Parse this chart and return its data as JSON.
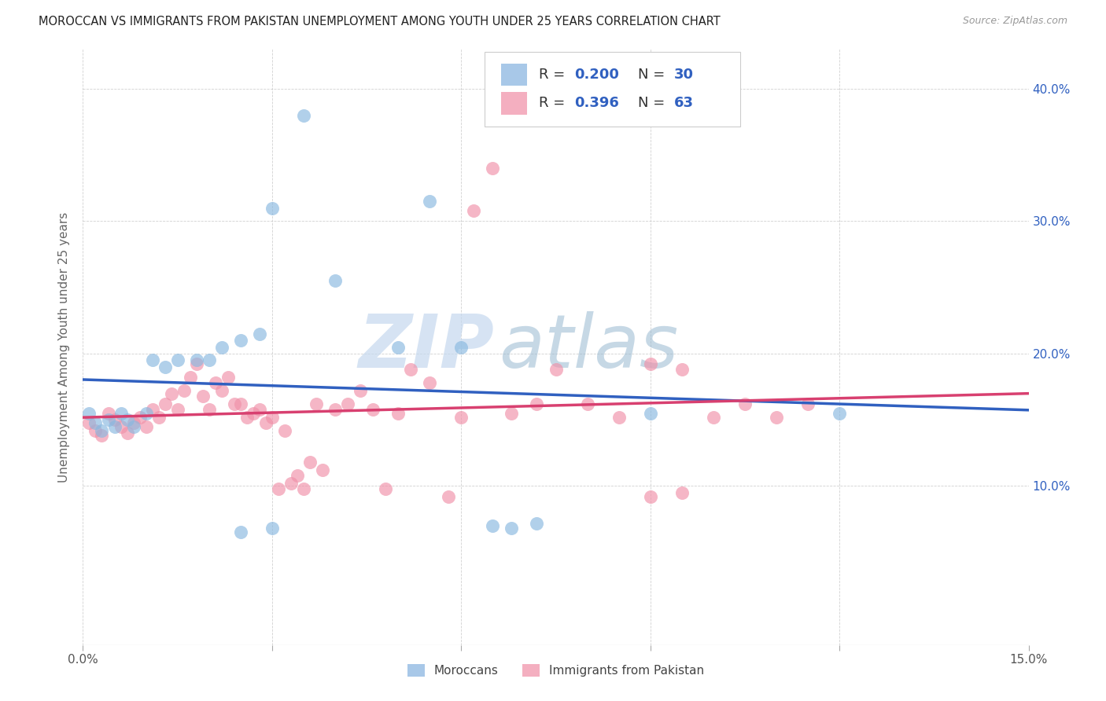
{
  "title": "MOROCCAN VS IMMIGRANTS FROM PAKISTAN UNEMPLOYMENT AMONG YOUTH UNDER 25 YEARS CORRELATION CHART",
  "source": "Source: ZipAtlas.com",
  "ylabel": "Unemployment Among Youth under 25 years",
  "xlim": [
    0.0,
    0.15
  ],
  "ylim": [
    -0.02,
    0.43
  ],
  "xticks": [
    0.0,
    0.03,
    0.06,
    0.09,
    0.12,
    0.15
  ],
  "yticks": [
    0.1,
    0.2,
    0.3,
    0.4
  ],
  "ytick_labels_right": [
    "10.0%",
    "20.0%",
    "30.0%",
    "40.0%"
  ],
  "xtick_labels": [
    "0.0%",
    "",
    "",
    "",
    "",
    "15.0%"
  ],
  "legend_bottom": [
    "Moroccans",
    "Immigrants from Pakistan"
  ],
  "legend_bottom_colors": [
    "#a8c8e8",
    "#f4afc0"
  ],
  "moroccan_color": "#88b8e0",
  "pakistan_color": "#f090a8",
  "moroccan_line_color": "#3060c0",
  "pakistan_line_color": "#d84070",
  "watermark_zip": "ZIP",
  "watermark_atlas": "atlas",
  "background_color": "#ffffff",
  "moroccan_x": [
    0.001,
    0.002,
    0.003,
    0.004,
    0.005,
    0.006,
    0.007,
    0.008,
    0.01,
    0.011,
    0.013,
    0.015,
    0.018,
    0.02,
    0.022,
    0.025,
    0.028,
    0.03,
    0.035,
    0.04,
    0.05,
    0.055,
    0.06,
    0.065,
    0.068,
    0.072,
    0.09,
    0.12,
    0.025,
    0.03
  ],
  "moroccan_y": [
    0.155,
    0.148,
    0.142,
    0.15,
    0.145,
    0.155,
    0.15,
    0.145,
    0.155,
    0.195,
    0.19,
    0.195,
    0.195,
    0.195,
    0.205,
    0.21,
    0.215,
    0.31,
    0.38,
    0.255,
    0.205,
    0.315,
    0.205,
    0.07,
    0.068,
    0.072,
    0.155,
    0.155,
    0.065,
    0.068
  ],
  "pakistan_x": [
    0.001,
    0.002,
    0.003,
    0.004,
    0.005,
    0.006,
    0.007,
    0.008,
    0.009,
    0.01,
    0.011,
    0.012,
    0.013,
    0.014,
    0.015,
    0.016,
    0.017,
    0.018,
    0.019,
    0.02,
    0.021,
    0.022,
    0.023,
    0.024,
    0.025,
    0.026,
    0.027,
    0.028,
    0.029,
    0.03,
    0.031,
    0.032,
    0.033,
    0.034,
    0.035,
    0.036,
    0.037,
    0.038,
    0.04,
    0.042,
    0.044,
    0.046,
    0.048,
    0.05,
    0.052,
    0.055,
    0.058,
    0.06,
    0.065,
    0.068,
    0.072,
    0.075,
    0.08,
    0.085,
    0.09,
    0.095,
    0.1,
    0.105,
    0.11,
    0.115,
    0.062,
    0.09,
    0.095
  ],
  "pakistan_y": [
    0.148,
    0.142,
    0.138,
    0.155,
    0.15,
    0.145,
    0.14,
    0.148,
    0.152,
    0.145,
    0.158,
    0.152,
    0.162,
    0.17,
    0.158,
    0.172,
    0.182,
    0.192,
    0.168,
    0.158,
    0.178,
    0.172,
    0.182,
    0.162,
    0.162,
    0.152,
    0.155,
    0.158,
    0.148,
    0.152,
    0.098,
    0.142,
    0.102,
    0.108,
    0.098,
    0.118,
    0.162,
    0.112,
    0.158,
    0.162,
    0.172,
    0.158,
    0.098,
    0.155,
    0.188,
    0.178,
    0.092,
    0.152,
    0.34,
    0.155,
    0.162,
    0.188,
    0.162,
    0.152,
    0.092,
    0.188,
    0.152,
    0.162,
    0.152,
    0.162,
    0.308,
    0.192,
    0.095
  ]
}
